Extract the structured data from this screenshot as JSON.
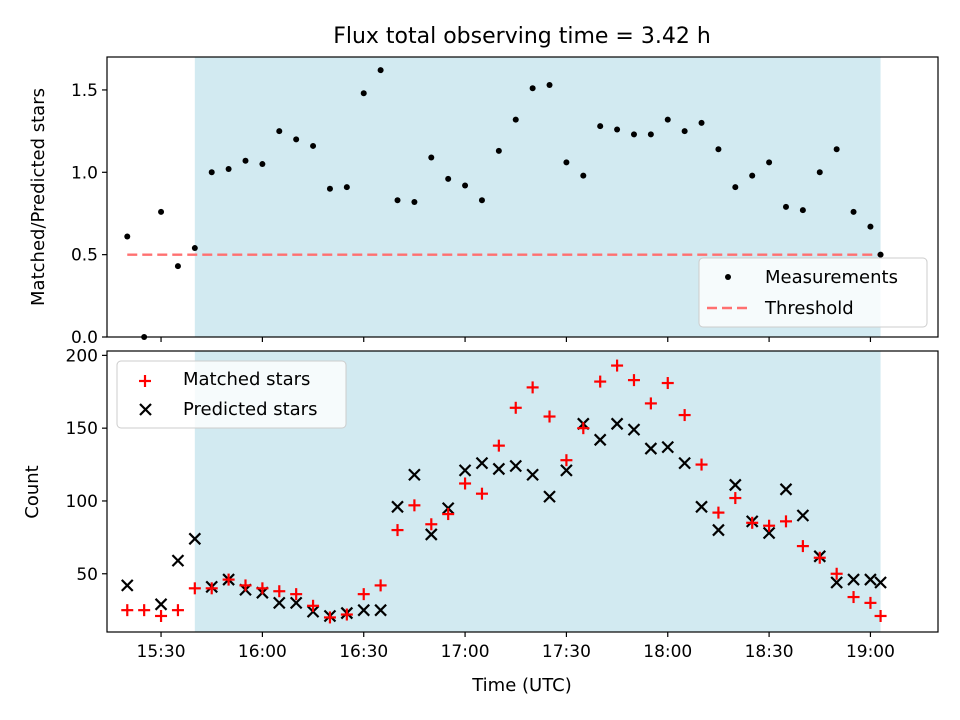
{
  "chart_data": [
    {
      "type": "scatter",
      "title": "Flux total observing time = 3.42 h",
      "ylabel": "Matched/Predicted stars",
      "xlim": [
        "15:14",
        "19:20"
      ],
      "ylim": [
        0,
        1.7
      ],
      "yticks": [
        "0.0",
        "0.5",
        "1.0",
        "1.5"
      ],
      "shaded_interval": [
        "15:40",
        "19:03"
      ],
      "shade_color": "#add8e6",
      "legend_position": "lower right",
      "series": [
        {
          "name": "Measurements",
          "color": "#000000",
          "marker": "dot",
          "x": [
            "15:20",
            "15:25",
            "15:30",
            "15:35",
            "15:40",
            "15:45",
            "15:50",
            "15:55",
            "16:00",
            "16:05",
            "16:10",
            "16:15",
            "16:20",
            "16:25",
            "16:30",
            "16:35",
            "16:40",
            "16:45",
            "16:50",
            "16:55",
            "17:00",
            "17:05",
            "17:10",
            "17:15",
            "17:20",
            "17:25",
            "17:30",
            "17:35",
            "17:40",
            "17:45",
            "17:50",
            "17:55",
            "18:00",
            "18:05",
            "18:10",
            "18:15",
            "18:20",
            "18:25",
            "18:30",
            "18:35",
            "18:40",
            "18:45",
            "18:50",
            "18:55",
            "19:00",
            "19:03"
          ],
          "y": [
            0.61,
            0.0,
            0.76,
            0.43,
            0.54,
            1.0,
            1.02,
            1.07,
            1.05,
            1.25,
            1.2,
            1.16,
            0.9,
            0.91,
            1.48,
            1.62,
            0.83,
            0.82,
            1.09,
            0.96,
            0.92,
            0.83,
            1.13,
            1.32,
            1.51,
            1.53,
            1.06,
            0.98,
            1.28,
            1.26,
            1.23,
            1.23,
            1.32,
            1.25,
            1.3,
            1.14,
            0.91,
            0.98,
            1.06,
            0.79,
            0.77,
            1.0,
            1.14,
            0.76,
            0.67,
            0.5
          ]
        },
        {
          "name": "Threshold",
          "color": "#ff7070",
          "style": "dashed",
          "x": [
            "15:20",
            "19:03"
          ],
          "y": [
            0.5,
            0.5
          ]
        }
      ]
    },
    {
      "type": "scatter",
      "xlabel": "Time (UTC)",
      "ylabel": "Count",
      "xlim": [
        "15:14",
        "19:20"
      ],
      "ylim": [
        10,
        203
      ],
      "xticks": [
        "15:30",
        "16:00",
        "16:30",
        "17:00",
        "17:30",
        "18:00",
        "18:30",
        "19:00"
      ],
      "yticks": [
        "50",
        "100",
        "150",
        "200"
      ],
      "shaded_interval": [
        "15:40",
        "19:03"
      ],
      "shade_color": "#add8e6",
      "legend_position": "upper left",
      "series": [
        {
          "name": "Matched stars",
          "color": "#ff0000",
          "marker": "plus",
          "x": [
            "15:20",
            "15:25",
            "15:30",
            "15:35",
            "15:40",
            "15:45",
            "15:50",
            "15:55",
            "16:00",
            "16:05",
            "16:10",
            "16:15",
            "16:20",
            "16:25",
            "16:30",
            "16:35",
            "16:40",
            "16:45",
            "16:50",
            "16:55",
            "17:00",
            "17:05",
            "17:10",
            "17:15",
            "17:20",
            "17:25",
            "17:30",
            "17:35",
            "17:40",
            "17:45",
            "17:50",
            "17:55",
            "18:00",
            "18:05",
            "18:10",
            "18:15",
            "18:20",
            "18:25",
            "18:30",
            "18:35",
            "18:40",
            "18:45",
            "18:50",
            "18:55",
            "19:00",
            "19:03"
          ],
          "y": [
            25,
            25,
            21,
            25,
            40,
            40,
            46,
            42,
            40,
            38,
            36,
            28,
            20,
            22,
            36,
            42,
            80,
            97,
            84,
            91,
            112,
            105,
            138,
            164,
            178,
            158,
            128,
            150,
            182,
            193,
            183,
            167,
            181,
            159,
            125,
            92,
            102,
            85,
            83,
            86,
            69,
            61,
            50,
            34,
            30,
            21
          ]
        },
        {
          "name": "Predicted stars",
          "color": "#000000",
          "marker": "x",
          "x": [
            "15:20",
            "15:25",
            "15:30",
            "15:35",
            "15:40",
            "15:45",
            "15:50",
            "15:55",
            "16:00",
            "16:05",
            "16:10",
            "16:15",
            "16:20",
            "16:25",
            "16:30",
            "16:35",
            "16:40",
            "16:45",
            "16:50",
            "16:55",
            "17:00",
            "17:05",
            "17:10",
            "17:15",
            "17:20",
            "17:25",
            "17:30",
            "17:35",
            "17:40",
            "17:45",
            "17:50",
            "17:55",
            "18:00",
            "18:05",
            "18:10",
            "18:15",
            "18:20",
            "18:25",
            "18:30",
            "18:35",
            "18:40",
            "18:45",
            "18:50",
            "18:55",
            "19:00",
            "19:03"
          ],
          "y": [
            42,
            null,
            29,
            59,
            74,
            41,
            46,
            39,
            37,
            30,
            30,
            24,
            21,
            23,
            25,
            25,
            96,
            118,
            77,
            95,
            121,
            126,
            122,
            124,
            118,
            103,
            121,
            153,
            142,
            153,
            149,
            136,
            137,
            126,
            96,
            80,
            111,
            86,
            78,
            108,
            90,
            62,
            44,
            46,
            46,
            44
          ]
        }
      ]
    }
  ]
}
